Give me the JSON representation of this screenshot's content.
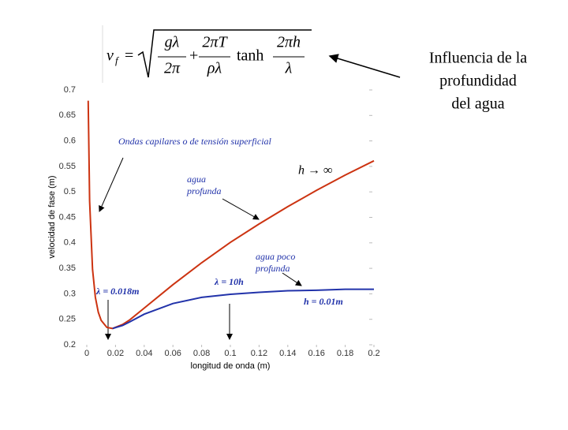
{
  "chart_data": {
    "type": "line",
    "formula": {
      "lhs": "v",
      "lhs_sub": "f",
      "eq": "=",
      "n1": "gλ",
      "d1": "2π",
      "plus": "+",
      "n2": "2πT",
      "d2": "ρλ",
      "fn": "tanh",
      "n3": "2πh",
      "d3": "λ"
    },
    "side_note": [
      "Influencia de la",
      "profundidad",
      "del agua"
    ],
    "x_label": "longitud de onda (m)",
    "y_label": "velocidad de fase (m)",
    "x": [
      0.001,
      0.002,
      0.004,
      0.006,
      0.008,
      0.01,
      0.014,
      0.018,
      0.025,
      0.03,
      0.04,
      0.06,
      0.08,
      0.1,
      0.12,
      0.14,
      0.16,
      0.18,
      0.2
    ],
    "series": [
      {
        "name": "h → ∞",
        "color": "#cc3311",
        "values": [
          0.679,
          0.482,
          0.348,
          0.293,
          0.264,
          0.248,
          0.234,
          0.232,
          0.24,
          0.249,
          0.272,
          0.318,
          0.361,
          0.401,
          0.437,
          0.471,
          0.503,
          0.533,
          0.561
        ]
      },
      {
        "name": "h = 0.01m",
        "color": "#2233aa",
        "values": [
          null,
          null,
          null,
          null,
          null,
          null,
          null,
          0.232,
          0.238,
          0.245,
          0.26,
          0.281,
          0.293,
          0.299,
          0.303,
          0.306,
          0.307,
          0.309,
          0.309
        ]
      }
    ],
    "annotations": {
      "capilares": "Ondas capilares o de tensión superficial",
      "profunda": [
        "agua",
        "profunda"
      ],
      "poco": [
        "agua poco",
        "profunda"
      ],
      "lambda_min": "λ = 0.018m",
      "lambda_10h": "λ = 10h"
    },
    "xlim": [
      0,
      0.2
    ],
    "ylim": [
      0.2,
      0.7
    ],
    "xticks": [
      0,
      0.02,
      0.04,
      0.06,
      0.08,
      0.1,
      0.12,
      0.14,
      0.16,
      0.18,
      0.2
    ],
    "yticks": [
      0.2,
      0.25,
      0.3,
      0.35,
      0.4,
      0.45,
      0.5,
      0.55,
      0.6,
      0.65,
      0.7
    ]
  }
}
